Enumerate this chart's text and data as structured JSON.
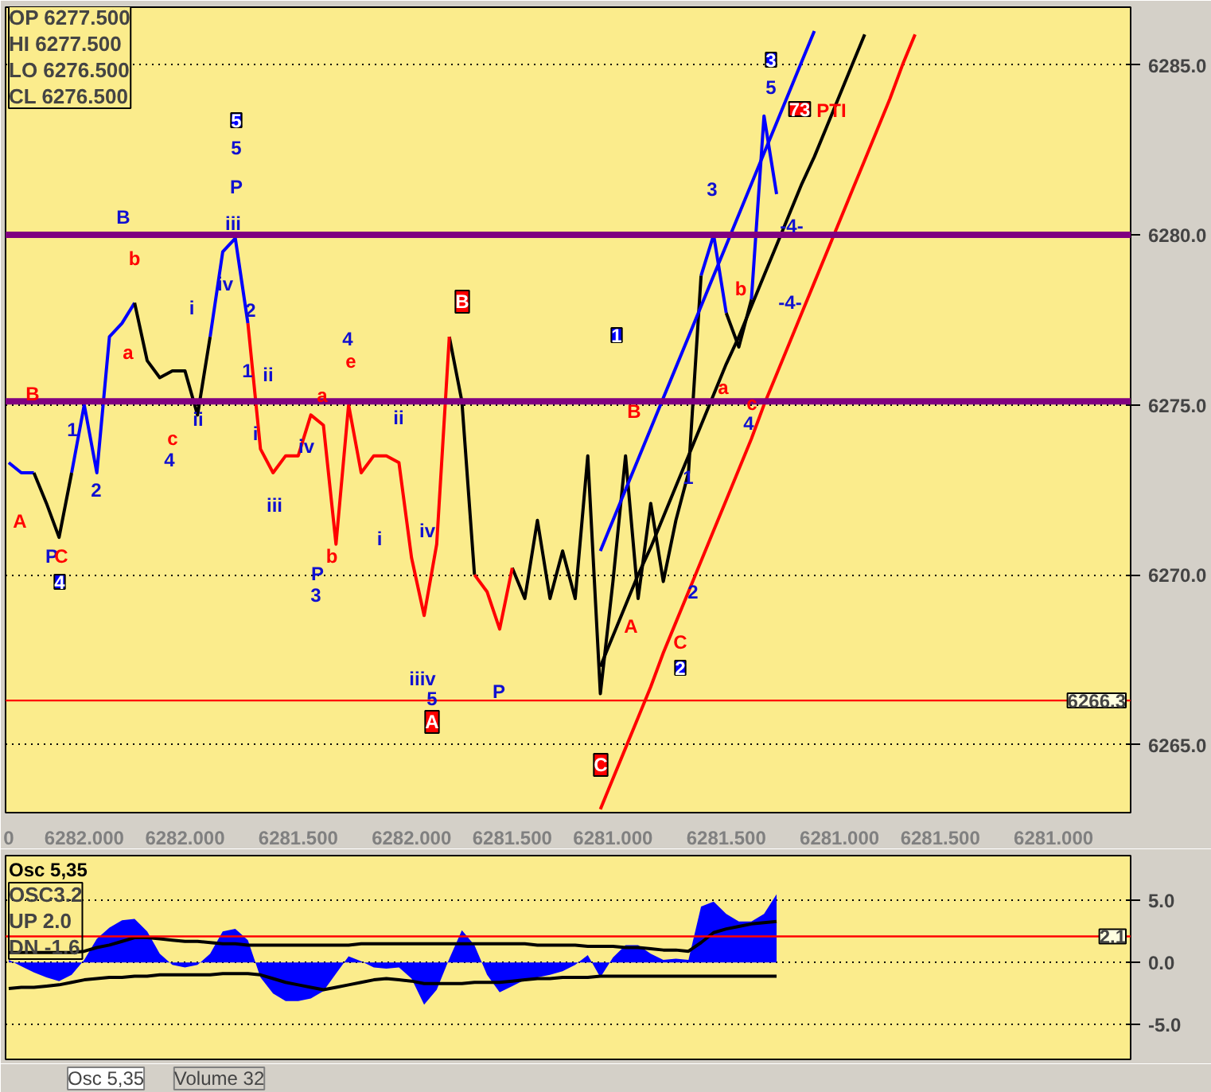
{
  "chart_data": [
    {
      "type": "line",
      "ylim": [
        6263,
        6286.7
      ],
      "categories": [
        "0",
        null,
        null,
        null,
        null,
        null,
        "6282.000",
        null,
        null,
        null,
        null,
        null,
        null,
        null,
        "6282.000",
        null,
        null,
        null,
        null,
        null,
        null,
        null,
        null,
        "6281.500",
        null,
        null,
        null,
        null,
        null,
        null,
        null,
        null,
        "6282.000",
        null,
        null,
        null,
        null,
        null,
        null,
        null,
        "6281.500",
        null,
        null,
        null,
        null,
        null,
        null,
        null,
        "6281.000",
        null,
        null,
        null,
        null,
        null,
        null,
        null,
        null,
        "6281.500",
        null,
        null,
        null,
        null,
        null,
        null,
        null,
        null,
        "6281.000",
        null,
        null,
        null,
        null,
        null,
        null,
        null,
        "6281.500",
        null,
        null,
        null,
        null,
        null,
        null,
        null,
        null,
        "6281.000",
        null,
        null,
        null,
        null,
        null,
        null
      ],
      "yticks": [
        {
          "value": 6265,
          "label": "6265.0"
        },
        {
          "value": 6270,
          "label": "6270.0"
        },
        {
          "value": 6275,
          "label": "6275.0"
        },
        {
          "value": 6280,
          "label": "6280.0"
        },
        {
          "value": 6285,
          "label": "6285.0"
        }
      ],
      "grid": "y",
      "series": [
        {
          "color": "#0000ff",
          "values": [
            6273.3,
            6273.0,
            6273.0,
            null,
            null,
            6273.0,
            6275.0,
            6273.0,
            6277.0,
            6277.4,
            6278.0,
            null,
            null,
            null,
            null,
            null,
            6277.0,
            6279.5,
            6279.9,
            6277.4,
            null,
            null,
            null,
            null,
            null,
            null,
            null,
            null,
            null,
            null,
            null,
            null,
            null,
            null,
            null,
            null,
            null,
            null,
            null,
            null,
            null,
            null,
            null,
            null,
            null,
            null,
            null,
            null,
            null,
            null,
            null,
            null,
            null,
            null,
            null,
            6278.8,
            6280.0,
            6277.7,
            null,
            6278.1,
            6283.5,
            6281.2,
            null,
            null,
            null,
            null,
            null,
            null,
            null,
            null,
            null,
            null,
            null,
            null,
            null,
            null,
            null,
            null,
            null,
            null,
            null,
            null,
            null,
            null,
            null,
            null,
            null,
            null,
            null,
            null
          ]
        },
        {
          "color": "#000000",
          "values": [
            null,
            null,
            6273.0,
            6272.1,
            6271.1,
            6273.0,
            null,
            null,
            null,
            null,
            6278.0,
            6276.3,
            6275.8,
            6276.0,
            6276.0,
            6274.7,
            6277.0,
            null,
            null,
            null,
            null,
            null,
            null,
            null,
            null,
            null,
            null,
            null,
            null,
            null,
            null,
            null,
            null,
            null,
            null,
            6277.0,
            6275.1,
            6270.0,
            null,
            null,
            6270.2,
            6269.3,
            6271.6,
            6269.3,
            6270.7,
            6269.3,
            6273.5,
            6266.5,
            6269.8,
            6273.5,
            6269.3,
            6272.1,
            6269.8,
            6271.6,
            6273.0,
            6278.8,
            null,
            6277.7,
            6276.7,
            6278.1,
            null,
            null,
            null,
            null,
            null,
            null,
            null,
            null,
            null,
            null,
            null,
            null,
            null,
            null,
            null,
            null,
            null,
            null,
            null,
            null,
            null,
            null,
            null,
            null,
            null,
            null,
            null,
            null,
            null,
            null
          ]
        },
        {
          "color": "#ff0000",
          "values": [
            null,
            null,
            null,
            null,
            null,
            null,
            null,
            null,
            null,
            null,
            null,
            null,
            null,
            null,
            null,
            null,
            null,
            null,
            null,
            6277.4,
            6273.7,
            6273.0,
            6273.5,
            6273.5,
            6274.7,
            6274.4,
            6270.9,
            6275.0,
            6273.0,
            6273.5,
            6273.5,
            6273.3,
            6270.5,
            6268.8,
            6270.9,
            6277.0,
            null,
            6270.0,
            6269.5,
            6268.4,
            6270.2,
            null,
            null,
            null,
            null,
            null,
            null,
            null,
            null,
            null,
            null,
            null,
            null,
            null,
            null,
            null,
            null,
            null,
            null,
            null,
            null,
            null,
            null,
            null,
            null,
            null,
            null,
            null,
            null,
            null,
            null,
            null,
            null,
            null,
            null,
            null,
            null,
            null,
            null,
            null,
            null,
            null,
            null,
            null,
            null,
            null,
            null,
            null,
            null,
            null
          ]
        },
        {
          "color": "#0000ff",
          "values": [
            null,
            null,
            null,
            null,
            null,
            null,
            null,
            null,
            null,
            null,
            null,
            null,
            null,
            null,
            null,
            null,
            null,
            null,
            null,
            null,
            null,
            null,
            null,
            null,
            null,
            null,
            null,
            null,
            null,
            null,
            null,
            null,
            null,
            null,
            null,
            null,
            null,
            null,
            null,
            null,
            null,
            null,
            null,
            null,
            null,
            null,
            null,
            6270.7,
            6271.6,
            6272.5,
            6273.4,
            6274.3,
            6275.2,
            6276.1,
            6277.0,
            6277.9,
            6278.8,
            6279.7,
            6280.6,
            6281.5,
            6282.4,
            6283.3,
            6284.2,
            6285.1,
            6286.0,
            null,
            null,
            null,
            null,
            null,
            null,
            null,
            null,
            null,
            null,
            null,
            null,
            null,
            null,
            null,
            null,
            null,
            null,
            null,
            null,
            null,
            null,
            null,
            null,
            null
          ]
        },
        {
          "color": "#000000",
          "values": [
            null,
            null,
            null,
            null,
            null,
            null,
            null,
            null,
            null,
            null,
            null,
            null,
            null,
            null,
            null,
            null,
            null,
            null,
            null,
            null,
            null,
            null,
            null,
            null,
            null,
            null,
            null,
            null,
            null,
            null,
            null,
            null,
            null,
            null,
            null,
            null,
            null,
            null,
            null,
            null,
            null,
            null,
            null,
            null,
            null,
            null,
            null,
            6267.3,
            6268.2,
            6269.1,
            6270.0,
            6270.8,
            6271.7,
            6272.6,
            6273.5,
            6274.4,
            6275.3,
            6276.2,
            6277.0,
            6277.9,
            6278.8,
            6279.7,
            6280.6,
            6281.5,
            6282.3,
            6283.2,
            6284.1,
            6285.0,
            6285.9,
            null,
            null,
            null,
            null,
            null,
            null,
            null,
            null,
            null,
            null,
            null,
            null,
            null,
            null,
            null,
            null,
            null,
            null,
            null,
            null,
            null
          ]
        },
        {
          "color": "#ff0000",
          "values": [
            null,
            null,
            null,
            null,
            null,
            null,
            null,
            null,
            null,
            null,
            null,
            null,
            null,
            null,
            null,
            null,
            null,
            null,
            null,
            null,
            null,
            null,
            null,
            null,
            null,
            null,
            null,
            null,
            null,
            null,
            null,
            null,
            null,
            null,
            null,
            null,
            null,
            null,
            null,
            null,
            null,
            null,
            null,
            null,
            null,
            null,
            null,
            6263.1,
            6264.0,
            6264.9,
            6265.8,
            6266.7,
            6267.7,
            6268.6,
            6269.5,
            6270.4,
            6271.3,
            6272.2,
            6273.1,
            6274.0,
            6275.0,
            6275.9,
            6276.8,
            6277.7,
            6278.6,
            6279.5,
            6280.4,
            6281.3,
            6282.2,
            6283.1,
            6284.0,
            6285.0,
            6285.9,
            null,
            null,
            null,
            null,
            null,
            null,
            null,
            null,
            null,
            null,
            null,
            null,
            null,
            null,
            null,
            null,
            null
          ]
        }
      ],
      "ref_lines": [
        {
          "axis": "y",
          "value": 6280.0,
          "color": "#800080"
        },
        {
          "axis": "y",
          "value": 6275.1,
          "color": "#800080"
        },
        {
          "axis": "y",
          "value": 6266.3,
          "label": "6266.3",
          "color": "#ff0000"
        }
      ],
      "annotations": [
        "OP 6277.500",
        "HI 6277.500",
        "LO 6276.500",
        "CL 6276.500",
        "A",
        "B",
        "1",
        "2",
        "P",
        "C",
        "4",
        "B",
        "b",
        "a",
        "c",
        "4",
        "i",
        "ii",
        "5",
        "5",
        "P",
        "iii",
        "iv",
        "2",
        "1",
        "ii",
        "i",
        "iv",
        "iii",
        "4",
        "e",
        "a",
        "ii",
        "b",
        "P",
        "3",
        "i",
        "iv",
        "B",
        "iiiv",
        "5",
        "A",
        "P",
        "1",
        "B",
        "A",
        "C",
        "1",
        "2",
        "C",
        "2",
        "3",
        "5",
        "73",
        "PTI",
        "3",
        "-4-",
        "-4-",
        "b",
        "a",
        "c",
        "4"
      ]
    },
    {
      "type": "area",
      "title": "Osc 5,35",
      "ylim": [
        -7.8,
        8.6
      ],
      "categories": [
        null,
        null,
        null,
        null,
        null,
        null,
        null,
        null,
        null,
        null,
        null,
        null,
        null,
        null,
        null,
        null,
        null,
        null,
        null,
        null,
        null,
        null,
        null,
        null,
        null,
        null,
        null,
        null,
        null,
        null,
        null,
        null,
        null,
        null,
        null,
        null,
        null,
        null,
        null,
        null,
        null,
        null,
        null,
        null,
        null,
        null,
        null,
        null,
        null,
        null,
        null,
        null,
        null,
        null,
        null,
        null,
        null,
        null,
        null,
        null,
        null,
        null,
        null,
        null,
        null,
        null,
        null,
        null,
        null,
        null,
        null,
        null,
        null,
        null,
        null,
        null,
        null,
        null,
        null,
        null,
        null,
        null,
        null,
        null,
        null,
        null,
        null,
        null,
        null,
        null
      ],
      "yticks": [
        {
          "value": -5,
          "label": "-5.0"
        },
        {
          "value": 0,
          "label": "0.0"
        },
        {
          "value": 5,
          "label": "5.0"
        }
      ],
      "tick_labels": "y",
      "grid": "y",
      "series": [
        {
          "color": "#0000ff",
          "values": [
            0.2,
            -0.3,
            -0.8,
            -1.2,
            -1.5,
            -1.0,
            0.2,
            1.9,
            2.8,
            3.4,
            3.5,
            2.5,
            0.7,
            -0.2,
            -0.4,
            -0.2,
            0.7,
            2.5,
            2.7,
            1.8,
            -1.2,
            -2.5,
            -3.1,
            -3.1,
            -2.9,
            -2.3,
            -0.9,
            0.5,
            0.1,
            -0.4,
            -0.5,
            -0.4,
            -1.3,
            -3.4,
            -2.2,
            0.3,
            2.6,
            1.4,
            -1.0,
            -2.4,
            -1.9,
            -1.4,
            -1.2,
            -1.0,
            -0.7,
            -0.2,
            0.6,
            -1.2,
            0.4,
            1.4,
            1.4,
            0.7,
            0.2,
            0.3,
            0.2,
            4.5,
            4.9,
            3.9,
            3.3,
            3.3,
            3.9,
            5.5,
            null,
            null,
            null,
            null,
            null,
            null,
            null,
            null,
            null,
            null,
            null,
            null,
            null,
            null,
            null,
            null,
            null,
            null,
            null,
            null,
            null,
            null,
            null,
            null,
            null,
            null,
            null,
            null
          ]
        },
        {
          "type": "line",
          "color": "#000000",
          "values": [
            0.8,
            0.8,
            0.8,
            0.8,
            0.8,
            0.8,
            0.9,
            1.2,
            1.4,
            1.7,
            2.0,
            2.0,
            1.9,
            1.8,
            1.7,
            1.7,
            1.6,
            1.5,
            1.5,
            1.4,
            1.4,
            1.4,
            1.4,
            1.4,
            1.4,
            1.4,
            1.4,
            1.4,
            1.5,
            1.5,
            1.5,
            1.5,
            1.5,
            1.5,
            1.5,
            1.5,
            1.5,
            1.5,
            1.5,
            1.5,
            1.5,
            1.5,
            1.4,
            1.4,
            1.4,
            1.4,
            1.3,
            1.3,
            1.3,
            1.2,
            1.2,
            1.1,
            1.0,
            1.0,
            0.9,
            1.6,
            2.4,
            2.7,
            2.9,
            3.1,
            3.2,
            3.3,
            null,
            null,
            null,
            null,
            null,
            null,
            null,
            null,
            null,
            null,
            null,
            null,
            null,
            null,
            null,
            null,
            null,
            null,
            null,
            null,
            null,
            null,
            null,
            null,
            null,
            null,
            null,
            null
          ]
        },
        {
          "type": "line",
          "color": "#000000",
          "values": [
            -2.1,
            -2.0,
            -2.0,
            -1.9,
            -1.8,
            -1.6,
            -1.4,
            -1.3,
            -1.2,
            -1.2,
            -1.1,
            -1.1,
            -1.0,
            -1.0,
            -1.0,
            -1.0,
            -1.0,
            -0.9,
            -0.9,
            -0.9,
            -1.0,
            -1.3,
            -1.6,
            -1.8,
            -2.0,
            -2.2,
            -2.0,
            -1.8,
            -1.6,
            -1.4,
            -1.3,
            -1.4,
            -1.5,
            -1.7,
            -1.7,
            -1.7,
            -1.7,
            -1.6,
            -1.6,
            -1.6,
            -1.5,
            -1.4,
            -1.3,
            -1.3,
            -1.2,
            -1.2,
            -1.2,
            -1.1,
            -1.1,
            -1.1,
            -1.1,
            -1.1,
            -1.1,
            -1.1,
            -1.1,
            -1.1,
            -1.1,
            -1.1,
            -1.1,
            -1.1,
            -1.1,
            -1.1,
            null,
            null,
            null,
            null,
            null,
            null,
            null,
            null,
            null,
            null,
            null,
            null,
            null,
            null,
            null,
            null,
            null,
            null,
            null,
            null,
            null,
            null,
            null,
            null,
            null,
            null,
            null,
            null
          ]
        }
      ],
      "ref_lines": [
        {
          "axis": "y",
          "value": 2.1,
          "label": "2.1",
          "color": "#ff0000"
        }
      ],
      "annotations": [
        "OSC3.2",
        "UP 2.0",
        "DN -1.6",
        "Osc 5,35",
        "Volume 32"
      ]
    }
  ]
}
